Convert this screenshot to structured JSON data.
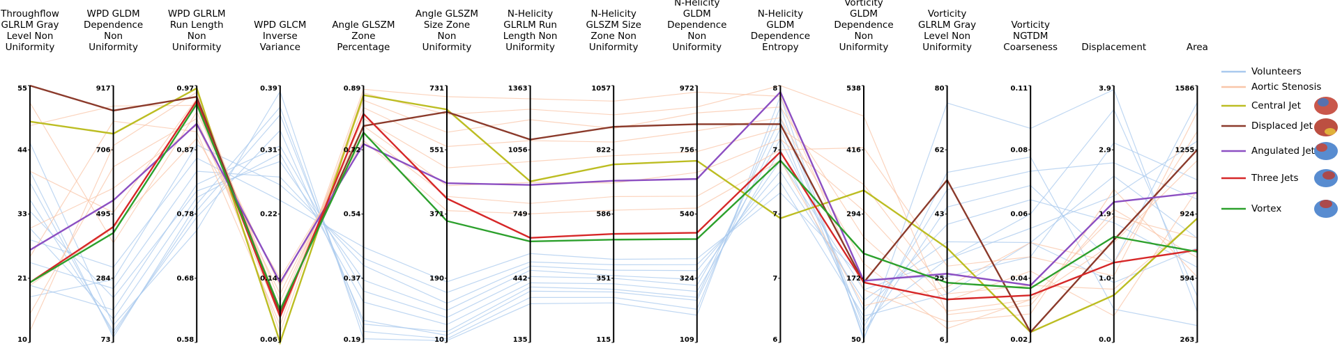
{
  "chart_data": {
    "type": "parallel",
    "legend": "right",
    "axes": [
      {
        "label": [
          "Throughflow",
          "GLRLM Gray",
          "Level Non",
          "Uniformity"
        ],
        "lim": [
          10,
          55
        ],
        "ticks": [
          10,
          {
            "value": 21.25,
            "label": "21"
          },
          {
            "value": 32.5,
            "label": "33"
          },
          {
            "value": 43.75,
            "label": "44"
          },
          55
        ]
      },
      {
        "label": [
          "WPD GLDM",
          "Dependence",
          "Non",
          "Uniformity"
        ],
        "lim": [
          73,
          917
        ],
        "ticks": [
          73,
          284,
          495,
          706,
          917
        ]
      },
      {
        "label": [
          "WPD GLRLM",
          "Run Length",
          "Non",
          "Uniformity"
        ],
        "lim": [
          0.58,
          0.97
        ],
        "ticks": [
          0.58,
          {
            "value": 0.6775,
            "label": "0.68"
          },
          {
            "value": 0.775,
            "label": "0.78"
          },
          {
            "value": 0.8725,
            "label": "0.87"
          },
          0.97
        ]
      },
      {
        "label": [
          "WPD GLCM",
          "Inverse",
          "Variance"
        ],
        "lim": [
          0.0575,
          0.3875
        ],
        "ticks": [
          {
            "value": 0.0575,
            "label": "0.06"
          },
          0.14,
          {
            "value": 0.2225,
            "label": "0.22"
          },
          {
            "value": 0.305,
            "label": "0.31"
          },
          {
            "value": 0.3875,
            "label": "0.39"
          }
        ]
      },
      {
        "label": [
          "Angle GLSZM",
          "Zone",
          "Percentage"
        ],
        "lim": [
          0.19,
          0.89
        ],
        "ticks": [
          0.19,
          {
            "value": 0.365,
            "label": "0.37"
          },
          0.54,
          {
            "value": 0.715,
            "label": "0.72"
          },
          0.89
        ]
      },
      {
        "label": [
          "Angle GLSZM",
          "Size Zone",
          "Non",
          "Uniformity"
        ],
        "lim": [
          10,
          731
        ],
        "ticks": [
          10,
          {
            "value": 190.25,
            "label": "190"
          },
          {
            "value": 370.5,
            "label": "371"
          },
          {
            "value": 550.75,
            "label": "551"
          },
          731
        ]
      },
      {
        "label": [
          "N-Helicity",
          "GLRLM Run",
          "Length Non",
          "Uniformity"
        ],
        "lim": [
          135,
          1363
        ],
        "ticks": [
          135,
          442,
          749,
          1056,
          1363
        ]
      },
      {
        "label": [
          "N-Helicity",
          "GLSZM Size",
          "Zone Non",
          "Uniformity"
        ],
        "lim": [
          115,
          1057
        ],
        "ticks": [
          115,
          {
            "value": 350.5,
            "label": "351"
          },
          586,
          {
            "value": 821.5,
            "label": "822"
          },
          1057
        ]
      },
      {
        "label": [
          "N-Helicity",
          "GLDM",
          "Dependence",
          "Non",
          "Uniformity"
        ],
        "lim": [
          108.5,
          971.8
        ],
        "ticks": [
          {
            "value": 108.5,
            "label": "109"
          },
          {
            "value": 324.325,
            "label": "324"
          },
          {
            "value": 540.15,
            "label": "540"
          },
          {
            "value": 755.975,
            "label": "756"
          },
          {
            "value": 971.8,
            "label": "972"
          }
        ]
      },
      {
        "label": [
          "N-Helicity",
          "GLDM",
          "Dependence",
          "Entropy"
        ],
        "lim": [
          6.4,
          7.6
        ],
        "ticks": [
          {
            "value": 6.4,
            "label": "6"
          },
          {
            "value": 6.7,
            "label": "7"
          },
          7,
          {
            "value": 7.3,
            "label": "7"
          },
          {
            "value": 7.6,
            "label": "8"
          }
        ]
      },
      {
        "label": [
          "Vorticity",
          "GLDM",
          "Dependence",
          "Non",
          "Uniformity"
        ],
        "lim": [
          50,
          538
        ],
        "ticks": [
          50,
          172,
          294,
          416,
          538
        ]
      },
      {
        "label": [
          "Vorticity",
          "GLRLM Gray",
          "Level Non",
          "Uniformity"
        ],
        "lim": [
          6,
          80
        ],
        "ticks": [
          6,
          {
            "value": 24.5,
            "label": "25"
          },
          43,
          {
            "value": 61.5,
            "label": "62"
          },
          80
        ]
      },
      {
        "label": [
          "Vorticity",
          "NGTDM",
          "Coarseness"
        ],
        "lim": [
          0.015,
          0.105
        ],
        "ticks": [
          {
            "value": 0.015,
            "label": "0.02"
          },
          {
            "value": 0.0375,
            "label": "0.04"
          },
          0.06,
          {
            "value": 0.0825,
            "label": "0.08"
          },
          {
            "value": 0.105,
            "label": "0.11"
          }
        ]
      },
      {
        "label": [
          "Displacement"
        ],
        "lim": [
          0,
          3.86
        ],
        "ticks": [
          {
            "value": 0,
            "label": "0.0"
          },
          {
            "value": 0.965,
            "label": "1.0"
          },
          {
            "value": 1.93,
            "label": "1.9"
          },
          {
            "value": 2.895,
            "label": "2.9"
          },
          {
            "value": 3.86,
            "label": "3.9"
          }
        ]
      },
      {
        "label": [
          "Area"
        ],
        "lim": [
          263,
          1585.6
        ],
        "ticks": [
          263,
          {
            "value": 593.65,
            "label": "594"
          },
          {
            "value": 924.3,
            "label": "924"
          },
          {
            "value": 1254.95,
            "label": "1255"
          },
          {
            "value": 1585.6,
            "label": "1586"
          }
        ]
      }
    ],
    "series": [
      {
        "name": "Volunteers",
        "color": "#a9c9ee",
        "values": [
          [
            30,
            150,
            0.8,
            0.3,
            0.3,
            60,
            420,
            330,
            280,
            7.3,
            90,
            30,
            0.06,
            3.5,
            500
          ],
          [
            35,
            110,
            0.77,
            0.33,
            0.25,
            30,
            380,
            300,
            250,
            7.4,
            70,
            45,
            0.07,
            1.2,
            1500
          ],
          [
            24,
            250,
            0.84,
            0.27,
            0.4,
            120,
            500,
            380,
            350,
            7.2,
            130,
            35,
            0.05,
            2.5,
            800
          ],
          [
            40,
            90,
            0.79,
            0.36,
            0.22,
            20,
            350,
            280,
            220,
            7.5,
            60,
            55,
            0.08,
            0.5,
            350
          ],
          [
            28,
            320,
            0.86,
            0.24,
            0.45,
            180,
            560,
            420,
            390,
            7.1,
            170,
            25,
            0.045,
            3.0,
            1100
          ],
          [
            20,
            180,
            0.82,
            0.31,
            0.33,
            80,
            450,
            350,
            300,
            7.35,
            110,
            40,
            0.065,
            1.8,
            650
          ],
          [
            45,
            130,
            0.75,
            0.38,
            0.2,
            15,
            320,
            260,
            200,
            7.55,
            55,
            75,
            0.09,
            3.8,
            420
          ],
          [
            33,
            220,
            0.81,
            0.29,
            0.36,
            100,
            480,
            360,
            320,
            7.25,
            150,
            30,
            0.055,
            2.2,
            1300
          ],
          [
            18,
            280,
            0.88,
            0.26,
            0.42,
            150,
            520,
            400,
            370,
            7.15,
            100,
            20,
            0.05,
            0.9,
            750
          ],
          [
            38,
            100,
            0.78,
            0.35,
            0.24,
            40,
            400,
            310,
            260,
            7.45,
            80,
            50,
            0.075,
            2.7,
            1000
          ]
        ]
      },
      {
        "name": "Aortic Stenosis",
        "color": "#f9c6a8",
        "values": [
          [
            15,
            650,
            0.92,
            0.09,
            0.85,
            600,
            1200,
            900,
            880,
            7.5,
            250,
            15,
            0.03,
            1.5,
            1200
          ],
          [
            40,
            500,
            0.95,
            0.11,
            0.8,
            500,
            1000,
            800,
            750,
            7.4,
            350,
            20,
            0.035,
            0.8,
            900
          ],
          [
            25,
            800,
            0.9,
            0.08,
            0.88,
            700,
            1300,
            1000,
            950,
            7.55,
            150,
            12,
            0.025,
            2.3,
            600
          ],
          [
            52,
            400,
            0.93,
            0.13,
            0.76,
            420,
            800,
            650,
            600,
            7.3,
            420,
            28,
            0.045,
            1.0,
            1450
          ],
          [
            12,
            720,
            0.96,
            0.1,
            0.83,
            560,
            1100,
            850,
            820,
            7.45,
            200,
            10,
            0.03,
            1.9,
            800
          ],
          [
            30,
            580,
            0.91,
            0.12,
            0.78,
            450,
            900,
            700,
            680,
            7.35,
            300,
            18,
            0.04,
            0.4,
            1050
          ],
          [
            48,
            850,
            0.94,
            0.07,
            0.87,
            650,
            1250,
            950,
            900,
            7.6,
            480,
            14,
            0.028,
            2.0,
            700
          ],
          [
            20,
            450,
            0.89,
            0.14,
            0.74,
            380,
            750,
            600,
            560,
            7.25,
            120,
            22,
            0.05,
            1.2,
            1350
          ]
        ]
      },
      {
        "name": "Central Jet",
        "color": "#bcbd22",
        "values": [
          48.7,
          759,
          0.966,
          0.0575,
          0.864,
          664,
          905,
          768,
          719,
          6.98,
          339,
          33.2,
          0.0186,
          0.71,
          902
        ]
      },
      {
        "name": "Displaced Jet",
        "color": "#8b3a2b",
        "values": [
          55,
          835,
          0.953,
          0.096,
          0.78,
          657,
          1105,
          906,
          842,
          7.42,
          164,
          52.8,
          0.0186,
          1.54,
          1255
        ]
      },
      {
        "name": "Angulated Jet",
        "color": "#8c4fc2",
        "values": [
          26.2,
          540,
          0.912,
          0.1344,
          0.731,
          457,
          888,
          708,
          658,
          7.57,
          167,
          25.8,
          0.035,
          2.11,
          1034
        ]
      },
      {
        "name": "Three Jets",
        "color": "#d62728",
        "values": [
          20.5,
          453,
          0.947,
          0.0905,
          0.813,
          414,
          635,
          513,
          477,
          7.29,
          164,
          18.4,
          0.0315,
          1.2,
          739
        ]
      },
      {
        "name": "Vortex",
        "color": "#2ca02c",
        "values": [
          20.5,
          433,
          0.942,
          0.0994,
          0.762,
          351,
          618,
          492,
          456,
          7.25,
          219,
          23.2,
          0.034,
          1.59,
          730
        ]
      }
    ]
  }
}
